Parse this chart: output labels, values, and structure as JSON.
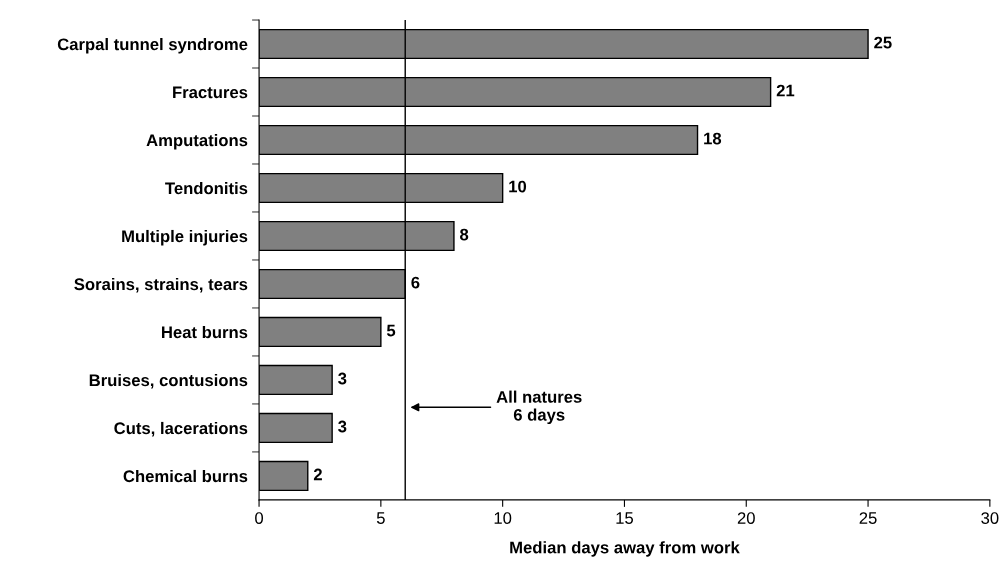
{
  "chart_data": {
    "type": "bar",
    "orientation": "horizontal",
    "xlabel": "Median days away from work",
    "categories": [
      "Carpal tunnel syndrome",
      "Fractures",
      "Amputations",
      "Tendonitis",
      "Multiple injuries",
      "Sorains, strains, tears",
      "Heat burns",
      "Bruises, contusions",
      "Cuts, lacerations",
      "Chemical burns"
    ],
    "values": [
      25,
      21,
      18,
      10,
      8,
      6,
      5,
      3,
      3,
      2
    ],
    "color": "#808080",
    "xlim": [
      0,
      30
    ],
    "xticks": [
      0,
      5,
      10,
      15,
      20,
      25,
      30
    ],
    "ref_lines": [
      {
        "axis": "x",
        "value": 6,
        "label": "All natures\n6 days",
        "color": "#000000"
      }
    ],
    "data_labels": true,
    "grid": false,
    "legend": false
  }
}
